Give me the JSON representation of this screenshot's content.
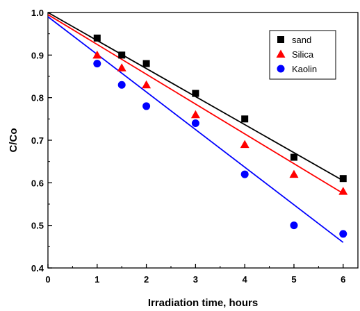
{
  "chart_data": {
    "type": "scatter",
    "title": "",
    "xlabel": "Irradiation time, hours",
    "ylabel": "C/Co",
    "xlim": [
      0,
      6.3
    ],
    "ylim": [
      0.4,
      1.0
    ],
    "x_ticks": [
      0,
      1,
      2,
      3,
      4,
      5,
      6
    ],
    "y_ticks": [
      0.4,
      0.5,
      0.6,
      0.7,
      0.8,
      0.9,
      1.0
    ],
    "x_tick_labels": [
      "0",
      "1",
      "2",
      "3",
      "4",
      "5",
      "6"
    ],
    "y_tick_labels": [
      "0.4",
      "0.5",
      "0.6",
      "0.7",
      "0.8",
      "0.9",
      "1.0"
    ],
    "grid": false,
    "legend_position": "top-right",
    "series": [
      {
        "name": "sand",
        "marker": "square",
        "color": "#000000",
        "x": [
          0,
          1,
          1.5,
          2,
          3,
          4,
          5,
          6
        ],
        "y": [
          1.0,
          0.94,
          0.9,
          0.88,
          0.81,
          0.75,
          0.66,
          0.61
        ],
        "fit": {
          "x": [
            0,
            6
          ],
          "y": [
            1.0,
            0.605
          ]
        }
      },
      {
        "name": "Silica",
        "marker": "triangle",
        "color": "#ff0000",
        "x": [
          0,
          1,
          1.5,
          2,
          3,
          4,
          5,
          6
        ],
        "y": [
          1.0,
          0.9,
          0.87,
          0.83,
          0.76,
          0.69,
          0.62,
          0.58
        ],
        "fit": {
          "x": [
            0,
            6
          ],
          "y": [
            0.995,
            0.575
          ]
        }
      },
      {
        "name": "Kaolin",
        "marker": "circle",
        "color": "#0000ff",
        "x": [
          0,
          1,
          1.5,
          2,
          3,
          4,
          5,
          6
        ],
        "y": [
          1.0,
          0.88,
          0.83,
          0.78,
          0.74,
          0.62,
          0.5,
          0.48
        ],
        "fit": {
          "x": [
            0,
            6
          ],
          "y": [
            0.99,
            0.46
          ]
        }
      }
    ]
  }
}
